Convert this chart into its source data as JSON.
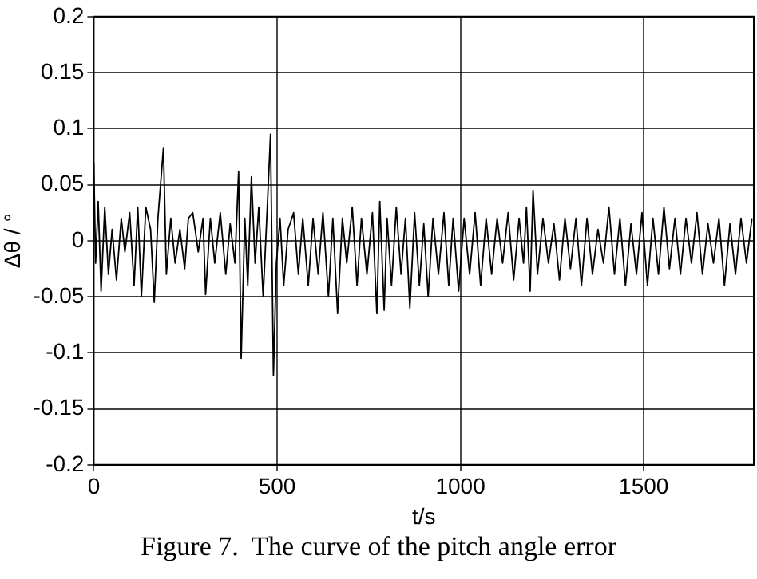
{
  "chart_data": {
    "type": "line",
    "xlabel": "t/s",
    "ylabel": "Δθ / °",
    "annotations": [
      "Figure 7.  The curve of the pitch angle error"
    ],
    "xlim": [
      0,
      1800
    ],
    "xticks": [
      0,
      500,
      1000,
      1500
    ],
    "ylim": [
      -0.2,
      0.2
    ],
    "yticks": [
      -0.2,
      -0.15,
      -0.1,
      -0.05,
      0,
      0.05,
      0.1,
      0.15,
      0.2
    ],
    "grid": true,
    "legend": false,
    "marker": "none",
    "line_style": "solid",
    "series": [
      {
        "color": "#000000",
        "x": [
          0,
          5,
          12,
          20,
          30,
          40,
          50,
          62,
          75,
          85,
          98,
          110,
          120,
          130,
          142,
          155,
          165,
          175,
          190,
          198,
          210,
          222,
          235,
          248,
          258,
          270,
          285,
          298,
          305,
          318,
          330,
          345,
          360,
          372,
          385,
          395,
          402,
          412,
          420,
          430,
          440,
          450,
          462,
          475,
          482,
          490,
          498,
          508,
          518,
          530,
          545,
          558,
          570,
          585,
          598,
          612,
          625,
          640,
          652,
          665,
          678,
          690,
          705,
          718,
          730,
          745,
          760,
          772,
          780,
          792,
          800,
          812,
          825,
          838,
          850,
          862,
          875,
          888,
          900,
          912,
          925,
          940,
          955,
          968,
          980,
          995,
          1010,
          1025,
          1040,
          1055,
          1070,
          1085,
          1100,
          1115,
          1130,
          1145,
          1160,
          1172,
          1180,
          1190,
          1198,
          1210,
          1225,
          1240,
          1255,
          1270,
          1285,
          1300,
          1315,
          1330,
          1345,
          1360,
          1375,
          1390,
          1405,
          1420,
          1435,
          1450,
          1465,
          1480,
          1495,
          1510,
          1525,
          1540,
          1555,
          1570,
          1585,
          1600,
          1615,
          1630,
          1645,
          1660,
          1675,
          1690,
          1705,
          1720,
          1735,
          1750,
          1765,
          1780,
          1795
        ],
        "values": [
          0.07,
          -0.02,
          0.035,
          -0.045,
          0.03,
          -0.03,
          0.01,
          -0.035,
          0.02,
          -0.01,
          0.025,
          -0.04,
          0.03,
          -0.05,
          0.03,
          0.01,
          -0.055,
          0.02,
          0.083,
          -0.03,
          0.02,
          -0.02,
          0.01,
          -0.025,
          0.02,
          0.025,
          -0.01,
          0.02,
          -0.048,
          0.02,
          -0.02,
          0.025,
          -0.03,
          0.015,
          -0.02,
          0.062,
          -0.105,
          0.02,
          -0.04,
          0.057,
          -0.02,
          0.03,
          -0.05,
          0.043,
          0.095,
          -0.12,
          -0.02,
          0.02,
          -0.04,
          0.01,
          0.025,
          -0.03,
          0.02,
          -0.04,
          0.02,
          -0.03,
          0.025,
          -0.05,
          0.02,
          -0.065,
          0.02,
          -0.02,
          0.03,
          -0.04,
          0.02,
          -0.03,
          0.025,
          -0.065,
          0.035,
          -0.062,
          0.02,
          -0.04,
          0.03,
          -0.03,
          0.02,
          -0.06,
          0.025,
          -0.04,
          0.015,
          -0.05,
          0.02,
          -0.03,
          0.025,
          -0.04,
          0.02,
          -0.045,
          0.02,
          -0.03,
          0.025,
          -0.04,
          0.02,
          -0.03,
          0.02,
          -0.02,
          0.025,
          -0.035,
          0.02,
          -0.02,
          0.03,
          -0.045,
          0.045,
          -0.03,
          0.02,
          -0.02,
          0.015,
          -0.035,
          0.02,
          -0.025,
          0.02,
          -0.04,
          0.02,
          -0.03,
          0.01,
          -0.02,
          0.03,
          -0.03,
          0.02,
          -0.04,
          0.015,
          -0.03,
          0.025,
          -0.04,
          0.02,
          -0.03,
          0.03,
          -0.025,
          0.02,
          -0.03,
          0.02,
          -0.02,
          0.025,
          -0.03,
          0.015,
          -0.02,
          0.02,
          -0.04,
          0.015,
          -0.03,
          0.02,
          -0.02,
          0.02
        ]
      }
    ]
  }
}
